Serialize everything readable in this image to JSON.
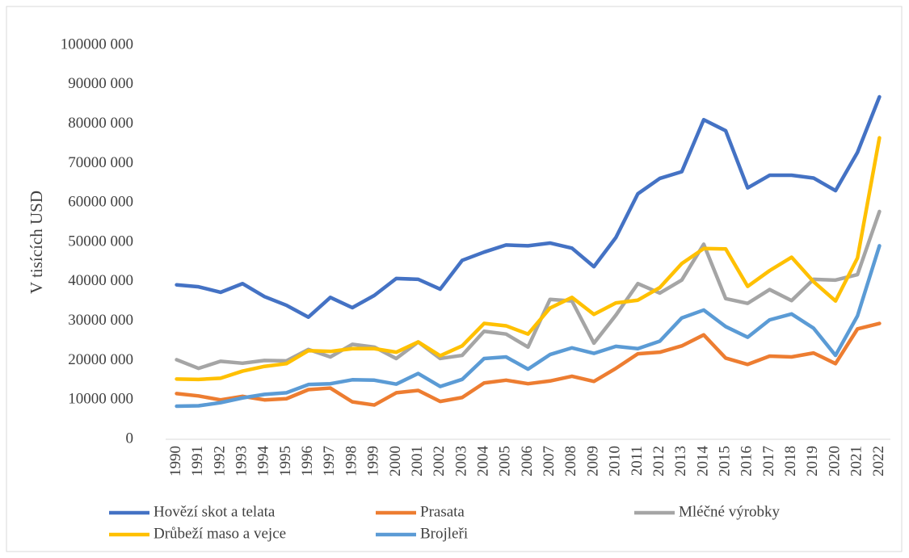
{
  "chart_data": {
    "type": "line",
    "y_label": "V tisících USD",
    "categories": [
      "1990",
      "1991",
      "1992",
      "1993",
      "1994",
      "1995",
      "1996",
      "1997",
      "1998",
      "1999",
      "2000",
      "2001",
      "2002",
      "2003",
      "2004",
      "2005",
      "2006",
      "2007",
      "2008",
      "2009",
      "2010",
      "2011",
      "2012",
      "2013",
      "2014",
      "2015",
      "2016",
      "2017",
      "2018",
      "2019",
      "2020",
      "2021",
      "2022"
    ],
    "series": [
      {
        "name": "Hovězí skot a telata",
        "color": "#4472c4",
        "values": [
          39200000,
          38700000,
          37300000,
          39500000,
          36200000,
          34000000,
          31000000,
          36000000,
          33400000,
          36500000,
          40800000,
          40600000,
          38100000,
          45400000,
          47500000,
          49300000,
          49100000,
          49800000,
          48500000,
          43800000,
          51200000,
          62300000,
          66200000,
          67900000,
          81100000,
          78300000,
          63800000,
          67000000,
          67000000,
          66300000,
          63100000,
          72800000,
          86900000
        ]
      },
      {
        "name": "Prasata",
        "color": "#ed7d31",
        "values": [
          11600000,
          11000000,
          10000000,
          10900000,
          10000000,
          10300000,
          12600000,
          13000000,
          9500000,
          8700000,
          11800000,
          12400000,
          9600000,
          10600000,
          14300000,
          15000000,
          14100000,
          14800000,
          16000000,
          14700000,
          18000000,
          21700000,
          22100000,
          23700000,
          26500000,
          20600000,
          19000000,
          21100000,
          20900000,
          21900000,
          19200000,
          28000000,
          29400000
        ]
      },
      {
        "name": "Mléčné výrobky",
        "color": "#a5a5a5",
        "values": [
          20200000,
          18000000,
          19800000,
          19300000,
          20000000,
          19900000,
          22800000,
          20900000,
          24100000,
          23400000,
          20500000,
          24700000,
          20500000,
          21300000,
          27400000,
          26700000,
          23400000,
          35500000,
          35100000,
          24400000,
          31500000,
          39500000,
          37100000,
          40400000,
          49500000,
          35700000,
          34500000,
          38000000,
          35200000,
          40600000,
          40400000,
          41800000,
          57800000
        ]
      },
      {
        "name": "Drůbeží maso a vejce",
        "color": "#ffc000",
        "values": [
          15300000,
          15200000,
          15500000,
          17300000,
          18500000,
          19200000,
          22500000,
          22300000,
          23000000,
          23000000,
          22100000,
          24700000,
          21200000,
          23700000,
          29400000,
          28800000,
          26700000,
          33300000,
          36000000,
          31700000,
          34600000,
          35300000,
          38500000,
          44600000,
          48400000,
          48300000,
          38800000,
          42800000,
          46200000,
          40000000,
          35100000,
          46000000,
          76500000
        ]
      },
      {
        "name": "Brojleři",
        "color": "#5b9bd5",
        "values": [
          8400000,
          8500000,
          9300000,
          10500000,
          11400000,
          11800000,
          13900000,
          14100000,
          15100000,
          15000000,
          14000000,
          16700000,
          13400000,
          15200000,
          20500000,
          20900000,
          17800000,
          21500000,
          23200000,
          21800000,
          23600000,
          23000000,
          24900000,
          30800000,
          32800000,
          28600000,
          25900000,
          30300000,
          31800000,
          28200000,
          21300000,
          31300000,
          49100000
        ]
      }
    ],
    "ylim": [
      0,
      100000000
    ],
    "yticks": [
      0,
      {
        "value": 10000000,
        "label": "10000 000"
      },
      {
        "value": 20000000,
        "label": "20000 000"
      },
      {
        "value": 30000000,
        "label": "30000 000"
      },
      {
        "value": 40000000,
        "label": "40000 000"
      },
      {
        "value": 50000000,
        "label": "50000 000"
      },
      {
        "value": 60000000,
        "label": "60000 000"
      },
      {
        "value": 70000000,
        "label": "70000 000"
      },
      {
        "value": 80000000,
        "label": "80000 000"
      },
      {
        "value": 90000000,
        "label": "90000 000"
      },
      {
        "value": 100000000,
        "label": "100000 000"
      }
    ],
    "legend": "bottom"
  }
}
